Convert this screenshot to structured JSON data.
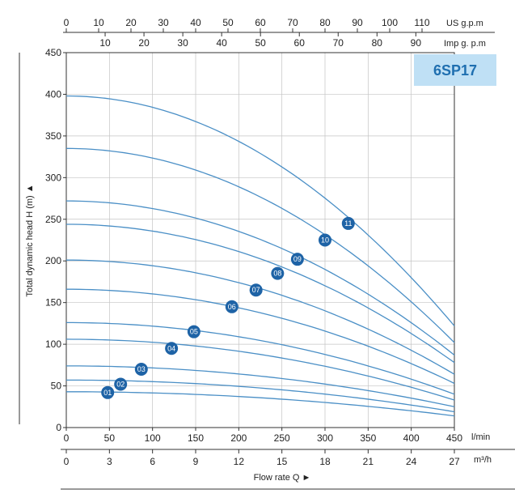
{
  "chart_data": {
    "type": "line",
    "model": "6SP17",
    "ylabel": "Total dynamic head H (m) ▲",
    "xlabel": "Flow rate Q ►",
    "ylim": [
      0,
      450
    ],
    "y_ticks": [
      0,
      50,
      100,
      150,
      200,
      250,
      300,
      350,
      400,
      450
    ],
    "x_lmin": {
      "unit": "l/min",
      "range": [
        0,
        450
      ],
      "ticks": [
        0,
        50,
        100,
        150,
        200,
        250,
        300,
        350,
        400,
        450
      ]
    },
    "x_m3h": {
      "unit": "m³/h",
      "range": [
        0,
        27
      ],
      "ticks": [
        0,
        3,
        6,
        9,
        12,
        15,
        18,
        21,
        24,
        27
      ]
    },
    "x_usgpm": {
      "unit": "US g.p.m",
      "range": [
        0,
        120
      ],
      "ticks": [
        0,
        10,
        20,
        30,
        40,
        50,
        60,
        70,
        80,
        90,
        100,
        110
      ]
    },
    "x_impgpm": {
      "unit": "Imp g. p.m",
      "ticks": [
        10,
        20,
        30,
        40,
        50,
        60,
        70,
        80,
        90
      ]
    },
    "grid": true,
    "colors": {
      "curve": "#4a8fc6",
      "marker": "#1e63a6",
      "badge_bg": "#bfe0f5",
      "badge_text": "#1f6fb0"
    },
    "series": [
      {
        "name": "01",
        "x": [
          0,
          450
        ],
        "y": [
          43,
          14
        ],
        "marker": [
          48,
          42
        ]
      },
      {
        "name": "02",
        "x": [
          0,
          450
        ],
        "y": [
          57,
          19
        ],
        "marker": [
          63,
          52
        ]
      },
      {
        "name": "03",
        "x": [
          0,
          450
        ],
        "y": [
          74,
          25
        ],
        "marker": [
          87,
          70
        ]
      },
      {
        "name": "04",
        "x": [
          0,
          450
        ],
        "y": [
          106,
          33
        ],
        "marker": [
          122,
          95
        ]
      },
      {
        "name": "05",
        "x": [
          0,
          450
        ],
        "y": [
          126,
          40
        ],
        "marker": [
          148,
          115
        ]
      },
      {
        "name": "06",
        "x": [
          0,
          450
        ],
        "y": [
          166,
          53
        ],
        "marker": [
          192,
          145
        ]
      },
      {
        "name": "07",
        "x": [
          0,
          450
        ],
        "y": [
          201,
          64
        ],
        "marker": [
          220,
          165
        ]
      },
      {
        "name": "08",
        "x": [
          0,
          450
        ],
        "y": [
          244,
          78
        ],
        "marker": [
          245,
          185
        ]
      },
      {
        "name": "09",
        "x": [
          0,
          450
        ],
        "y": [
          272,
          87
        ],
        "marker": [
          268,
          202
        ]
      },
      {
        "name": "10",
        "x": [
          0,
          450
        ],
        "y": [
          335,
          102
        ],
        "marker": [
          300,
          225
        ]
      },
      {
        "name": "11",
        "x": [
          0,
          450
        ],
        "y": [
          398,
          122
        ],
        "marker": [
          327,
          245
        ]
      }
    ]
  }
}
